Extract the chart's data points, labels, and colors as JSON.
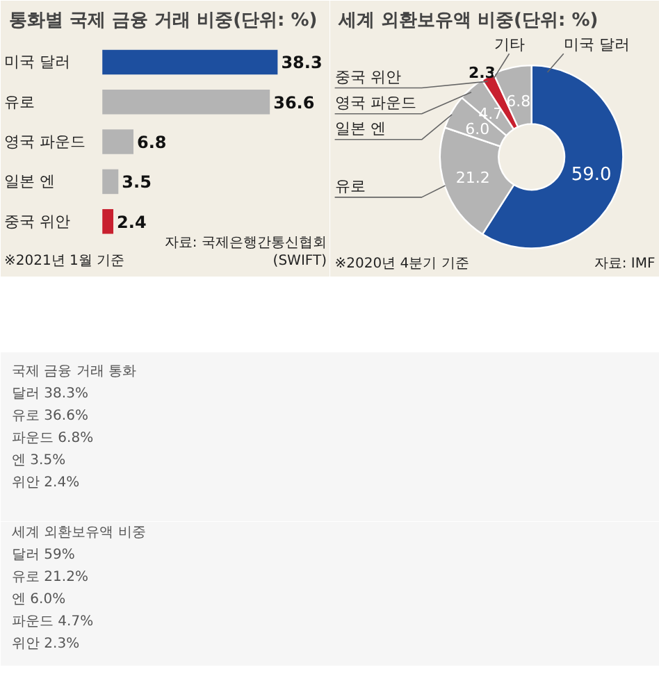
{
  "chart_data": [
    {
      "type": "bar",
      "orientation": "horizontal",
      "title": "통화별 국제 금융 거래 비중(단위: %)",
      "categories": [
        "미국 달러",
        "유로",
        "영국 파운드",
        "일본 엔",
        "중국 위안"
      ],
      "values": [
        38.3,
        36.6,
        6.8,
        3.5,
        2.4
      ],
      "colors": [
        "#1d4f9f",
        "#b4b4b4",
        "#b4b4b4",
        "#b4b4b4",
        "#c8202f"
      ],
      "data_labels": true,
      "annotations": [
        "※2021년 1월 기준",
        "자료: 국제은행간통신협회\n(SWIFT)"
      ]
    },
    {
      "type": "donut",
      "title": "세계 외환보유액 비중(단위: %)",
      "categories": [
        "미국 달러",
        "유로",
        "일본 엔",
        "영국 파운드",
        "중국 위안",
        "기타"
      ],
      "values": [
        59.0,
        21.2,
        6.0,
        4.7,
        2.3,
        6.8
      ],
      "colors": [
        "#1d4f9f",
        "#b4b4b4",
        "#b4b4b4",
        "#b4b4b4",
        "#c8202f",
        "#b4b4b4"
      ],
      "value_labels": [
        "59.0",
        "21.2",
        "6.0",
        "4.7",
        "2.3",
        "6.8"
      ],
      "annotations": [
        "※2020년 4분기 기준",
        "자료: IMF"
      ]
    },
    {
      "type": "other",
      "title": "국제 금융 거래 통화",
      "annotations": [
        "달러 38.3%",
        "유로 36.6%",
        "파운드 6.8%",
        "엔 3.5%",
        "위안 2.4%"
      ]
    },
    {
      "type": "other",
      "title": "세계 외환보유액 비중",
      "annotations": [
        "달러 59%",
        "유로 21.2%",
        "엔 6.0%",
        "파운드 4.7%",
        "위안 2.3%"
      ]
    }
  ]
}
